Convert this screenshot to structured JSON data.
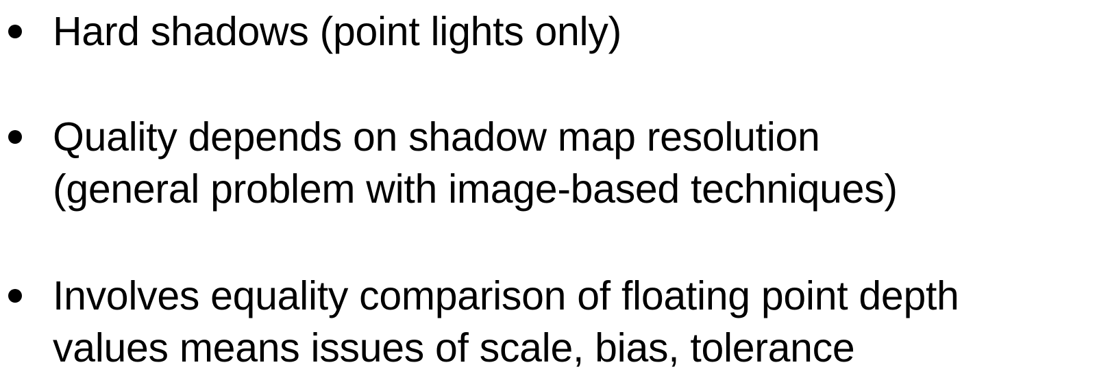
{
  "bullets": [
    {
      "lines": [
        "Hard shadows (point lights only)"
      ]
    },
    {
      "lines": [
        "Quality depends on shadow map resolution",
        "(general problem with image-based techniques)"
      ]
    },
    {
      "lines": [
        "Involves equality comparison of floating point depth",
        "values means issues of scale, bias, tolerance"
      ]
    }
  ]
}
